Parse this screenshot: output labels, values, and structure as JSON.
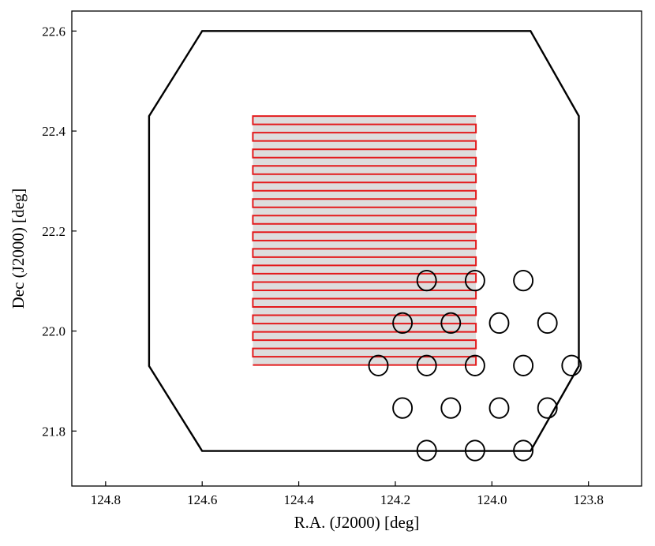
{
  "chart_data": {
    "type": "scatter",
    "title": "",
    "xlabel": "R.A. (J2000) [deg]",
    "ylabel": "Dec (J2000) [deg]",
    "xlim": [
      124.87,
      123.69
    ],
    "ylim": [
      21.69,
      22.64
    ],
    "x_inverted": true,
    "grid": false,
    "x_ticks": [
      {
        "value": 124.8,
        "label": "124.8"
      },
      {
        "value": 124.6,
        "label": "124.6"
      },
      {
        "value": 124.4,
        "label": "124.4"
      },
      {
        "value": 124.2,
        "label": "124.2"
      },
      {
        "value": 124.0,
        "label": "124.0"
      },
      {
        "value": 123.8,
        "label": "123.8"
      }
    ],
    "y_ticks": [
      {
        "value": 21.8,
        "label": "21.8"
      },
      {
        "value": 22.0,
        "label": "22.0"
      },
      {
        "value": 22.2,
        "label": "22.2"
      },
      {
        "value": 22.4,
        "label": "22.4"
      },
      {
        "value": 22.6,
        "label": "22.6"
      }
    ],
    "footprint": {
      "color": "#000000",
      "vertices": [
        [
          124.6,
          22.6
        ],
        [
          123.92,
          22.6
        ],
        [
          123.82,
          22.43
        ],
        [
          123.82,
          21.93
        ],
        [
          123.92,
          21.76
        ],
        [
          124.6,
          21.76
        ],
        [
          124.71,
          21.93
        ],
        [
          124.71,
          22.43
        ]
      ]
    },
    "scan": {
      "color": "#e31a1c",
      "fill": "#dddddd",
      "ra_start": 124.495,
      "ra_end": 124.033,
      "dec_start": 21.932,
      "dec_end": 22.43,
      "n_strips": 15
    },
    "circles": {
      "color": "#000000",
      "radius_deg": 0.02,
      "points": [
        {
          "ra": 124.135,
          "dec": 22.101
        },
        {
          "ra": 124.035,
          "dec": 22.101
        },
        {
          "ra": 123.935,
          "dec": 22.101
        },
        {
          "ra": 124.185,
          "dec": 22.016
        },
        {
          "ra": 124.085,
          "dec": 22.016
        },
        {
          "ra": 123.985,
          "dec": 22.016
        },
        {
          "ra": 123.885,
          "dec": 22.016
        },
        {
          "ra": 124.235,
          "dec": 21.931
        },
        {
          "ra": 124.135,
          "dec": 21.931
        },
        {
          "ra": 124.035,
          "dec": 21.931
        },
        {
          "ra": 123.935,
          "dec": 21.931
        },
        {
          "ra": 123.835,
          "dec": 21.931
        },
        {
          "ra": 124.185,
          "dec": 21.846
        },
        {
          "ra": 124.085,
          "dec": 21.846
        },
        {
          "ra": 123.985,
          "dec": 21.846
        },
        {
          "ra": 123.885,
          "dec": 21.846
        },
        {
          "ra": 124.135,
          "dec": 21.761
        },
        {
          "ra": 124.035,
          "dec": 21.761
        },
        {
          "ra": 123.935,
          "dec": 21.761
        }
      ]
    }
  }
}
